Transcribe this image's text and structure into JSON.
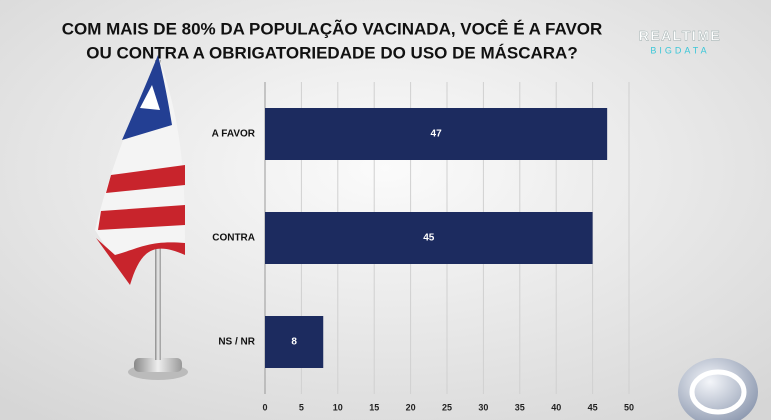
{
  "chart_data": {
    "type": "bar",
    "orientation": "horizontal",
    "title": [
      "COM MAIS DE 80% DA POPULAÇÃO VACINADA, VOCÊ É A FAVOR",
      "OU CONTRA A OBRIGATORIEDADE DO USO DE MÁSCARA?"
    ],
    "categories": [
      "A FAVOR",
      "CONTRA",
      "NS / NR"
    ],
    "values": [
      47,
      45,
      8
    ],
    "color": "#1c2b5f",
    "xlim": [
      0,
      50
    ],
    "xticks": [
      0,
      5,
      10,
      15,
      20,
      25,
      30,
      35,
      40,
      45,
      50
    ],
    "grid": true
  },
  "brand": {
    "name": "REALTIME",
    "sub": "BIGDATA"
  }
}
